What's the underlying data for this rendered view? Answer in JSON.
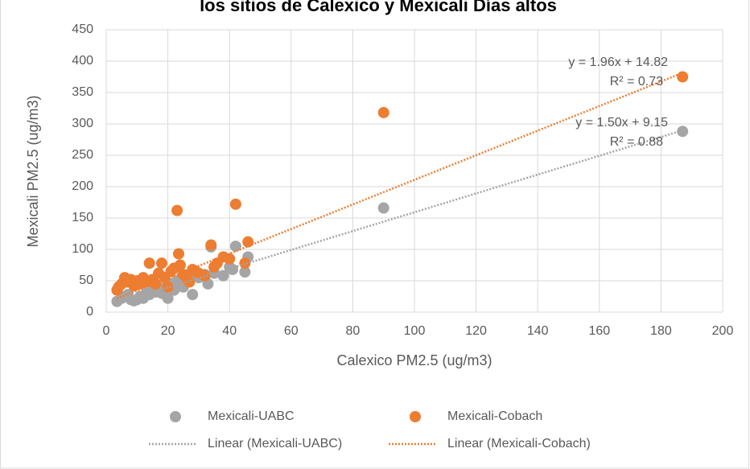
{
  "chart_data": {
    "type": "scatter",
    "title": "los sitios de Calexico y Mexicali Días altos",
    "x_label": "Calexico PM2.5 (ug/m3)",
    "y_label": "Mexicali PM2.5 (ug/m3)",
    "xlim": [
      0,
      200
    ],
    "xticks": [
      0,
      20,
      40,
      60,
      80,
      100,
      120,
      140,
      160,
      180,
      200
    ],
    "ylim": [
      0,
      450
    ],
    "yticks": [
      0,
      50,
      100,
      150,
      200,
      250,
      300,
      350,
      400,
      450
    ],
    "grid": true,
    "series": [
      {
        "name": "Mexicali-UABC",
        "color": "#a5a5a5",
        "x": [
          3.5,
          5,
          6,
          7,
          8,
          9,
          10,
          11,
          12,
          13,
          14,
          15,
          16,
          17,
          18,
          19,
          20,
          21,
          22,
          23,
          24,
          25,
          26,
          27,
          28,
          30,
          32,
          33,
          34,
          35,
          38,
          40,
          41,
          42,
          45,
          46,
          90,
          187
        ],
        "values": [
          17,
          22,
          25,
          28,
          20,
          18,
          20,
          25,
          22,
          30,
          28,
          35,
          32,
          40,
          30,
          38,
          22,
          45,
          35,
          50,
          42,
          40,
          55,
          60,
          28,
          55,
          60,
          45,
          104,
          62,
          58,
          72,
          68,
          105,
          64,
          88,
          166,
          288
        ],
        "trendline": {
          "name": "Linear (Mexicali-UABC)",
          "slope": 1.5,
          "intercept": 9.15,
          "equation": "y = 1.50x + 9.15",
          "r2": "R² = 0.88"
        }
      },
      {
        "name": "Mexicali-Cobach",
        "color": "#ed7d31",
        "x": [
          3.5,
          4,
          5,
          6,
          7,
          8,
          9,
          10,
          11,
          12,
          13,
          14,
          15,
          16,
          17,
          18,
          19,
          20,
          21,
          22,
          23,
          23.5,
          24,
          25,
          26,
          27,
          28,
          29,
          30,
          32,
          34,
          35,
          36,
          38,
          40,
          42,
          45,
          46,
          90,
          187
        ],
        "values": [
          35,
          40,
          45,
          55,
          48,
          52,
          42,
          50,
          45,
          55,
          48,
          78,
          52,
          45,
          62,
          78,
          55,
          40,
          65,
          70,
          162,
          93,
          75,
          60,
          55,
          48,
          68,
          65,
          62,
          58,
          107,
          72,
          78,
          88,
          85,
          172,
          78,
          112,
          318,
          375
        ],
        "trendline": {
          "name": "Linear (Mexicali-Cobach)",
          "slope": 1.96,
          "intercept": 14.82,
          "equation": "y = 1.96x + 14.82",
          "r2": "R² = 0.73"
        }
      }
    ]
  }
}
